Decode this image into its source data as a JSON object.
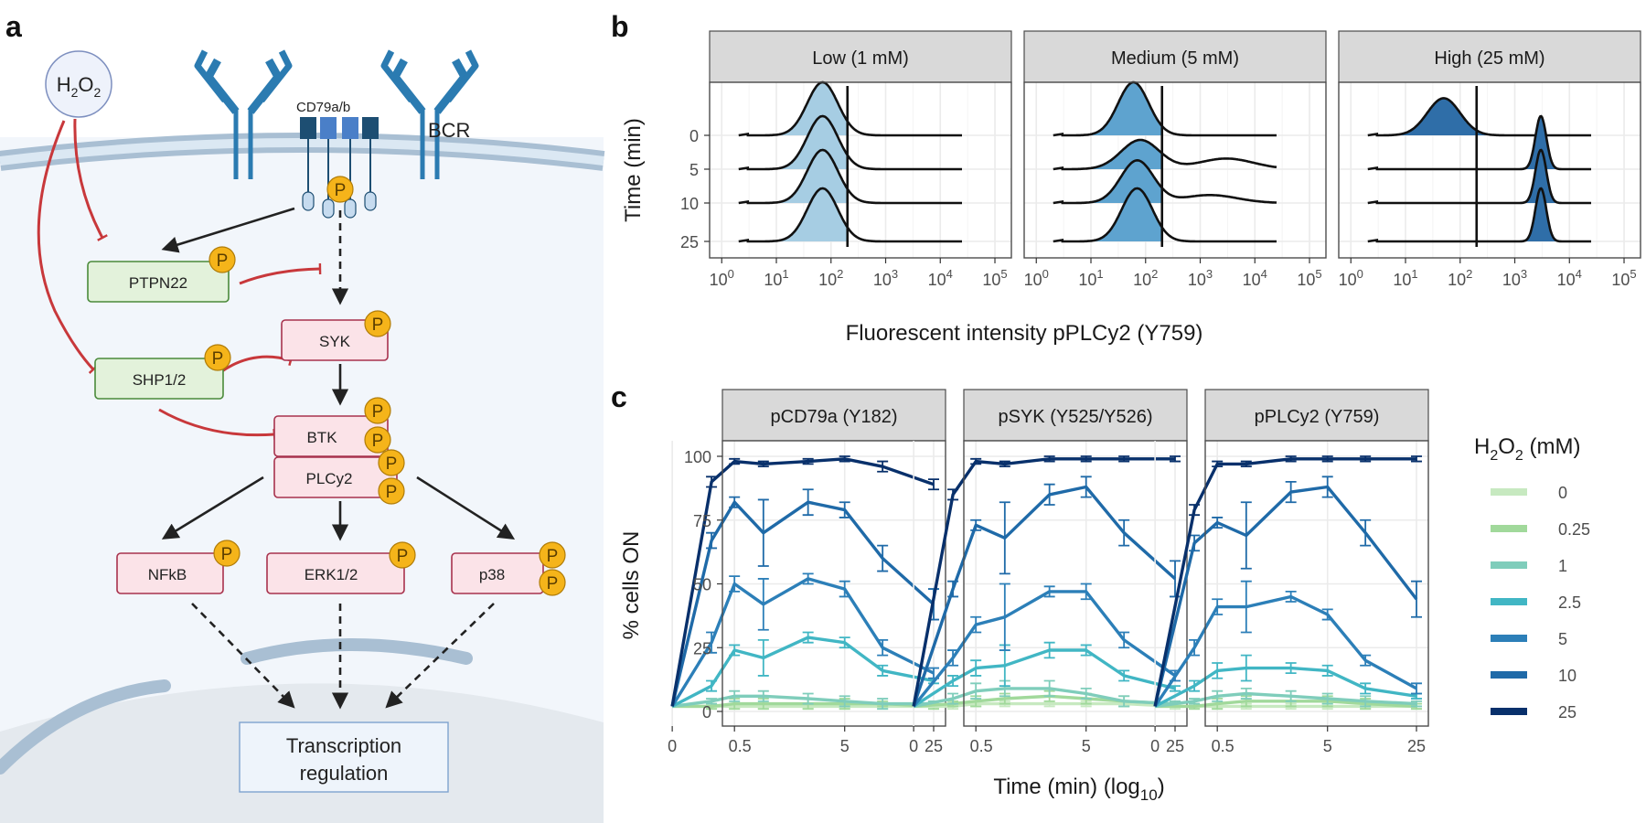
{
  "panel_labels": {
    "a": "a",
    "b": "b",
    "c": "c"
  },
  "colors": {
    "pink_fill": "#fbe3e8",
    "pink_stroke": "#a8324d",
    "green_fill": "#e3f2db",
    "green_stroke": "#4a8a3a",
    "inhibit": "#c8383b",
    "phospho": "#f5b41a",
    "strip_bg": "#d9d9d9",
    "grid": "#ebebeb",
    "receptor": "#2b7bb1",
    "receptor_dark": "#1d4e72"
  },
  "pathway": {
    "h2o2": {
      "main": "H",
      "sub1": "2",
      "mid": "O",
      "sub2": "2"
    },
    "cd79": "CD79a/b",
    "bcr": "BCR",
    "phospho_label": "P",
    "nodes": {
      "ptpn22": "PTPN22",
      "shp": "SHP1/2",
      "syk": "SYK",
      "btk": "BTK",
      "plcy2": "PLCy2",
      "nfkb": "NFkB",
      "erk": "ERK1/2",
      "p38": "p38",
      "transcription_line1": "Transcription",
      "transcription_line2": "regulation"
    }
  },
  "chart_data": [
    {
      "type": "ridgeline",
      "panels": [
        "Low (1 mM)",
        "Medium (5 mM)",
        "High (25 mM)"
      ],
      "y_categories": [
        "0",
        "5",
        "10",
        "25"
      ],
      "ylabel": "Time (min)",
      "xlabel": "Fluorescent intensity pPLCy2 (Y759)",
      "x_scale": "log10",
      "xlim": [
        0.6,
        200000
      ],
      "x_ticks": [
        {
          "base": "10",
          "exp": "0"
        },
        {
          "base": "10",
          "exp": "1"
        },
        {
          "base": "10",
          "exp": "2"
        },
        {
          "base": "10",
          "exp": "3"
        },
        {
          "base": "10",
          "exp": "4"
        },
        {
          "base": "10",
          "exp": "5"
        }
      ],
      "threshold": 200,
      "fill_colors": [
        "#a6cde3",
        "#5ea3cf",
        "#2f6ea8"
      ],
      "peaks": [
        [
          [
            {
              "center": 70,
              "sd": 0.28,
              "amp": 1
            }
          ],
          [
            {
              "center": 70,
              "sd": 0.28,
              "amp": 1
            }
          ],
          [
            {
              "center": 70,
              "sd": 0.28,
              "amp": 1
            }
          ],
          [
            {
              "center": 70,
              "sd": 0.28,
              "amp": 1
            }
          ]
        ],
        [
          [
            {
              "center": 60,
              "sd": 0.28,
              "amp": 1
            }
          ],
          [
            {
              "center": 80,
              "sd": 0.35,
              "amp": 0.55
            },
            {
              "center": 3000,
              "sd": 0.5,
              "amp": 0.2
            }
          ],
          [
            {
              "center": 70,
              "sd": 0.3,
              "amp": 0.8
            },
            {
              "center": 1500,
              "sd": 0.5,
              "amp": 0.15
            }
          ],
          [
            {
              "center": 70,
              "sd": 0.28,
              "amp": 1
            }
          ]
        ],
        [
          [
            {
              "center": 50,
              "sd": 0.3,
              "amp": 0.7
            }
          ],
          [
            {
              "center": 3000,
              "sd": 0.1,
              "amp": 1
            }
          ],
          [
            {
              "center": 3000,
              "sd": 0.1,
              "amp": 1
            }
          ],
          [
            {
              "center": 3000,
              "sd": 0.1,
              "amp": 1
            }
          ]
        ]
      ]
    },
    {
      "type": "line",
      "panels": [
        "pCD79a (Y182)",
        "pSYK (Y525/Y526)",
        "pPLCy2 (Y759)"
      ],
      "x": [
        0,
        0.25,
        0.5,
        1,
        2.5,
        5,
        10,
        25
      ],
      "x_tick_labels": [
        "0",
        "0.5",
        "5",
        "25"
      ],
      "x_tick_values": [
        0,
        0.5,
        5,
        25
      ],
      "xlabel": {
        "main": "Time (min) (log",
        "sub": "10",
        "close": ")"
      },
      "ylabel": "% cells ON",
      "ylim": [
        0,
        100
      ],
      "y_ticks": [
        0,
        25,
        50,
        75,
        100
      ],
      "legend": {
        "title_main": "H",
        "title_sub1": "2",
        "title_mid": "O",
        "title_sub2": "2",
        "title_units": " (mM)",
        "position": "right"
      },
      "series_names": [
        "0",
        "0.25",
        "1",
        "2.5",
        "5",
        "10",
        "25"
      ],
      "series_colors": [
        "#c7e9c0",
        "#a1d99b",
        "#7fcdbb",
        "#41b6c4",
        "#2c7fb8",
        "#1f6aa8",
        "#08306b"
      ],
      "series": [
        {
          "name": "0",
          "panels": [
            [
              2,
              2,
              2,
              2,
              2,
              2,
              2,
              2
            ],
            [
              2,
              2,
              3,
              3,
              3,
              3,
              3,
              2
            ],
            [
              2,
              2,
              2,
              2,
              2,
              2,
              2,
              2
            ]
          ]
        },
        {
          "name": "0.25",
          "panels": [
            [
              2,
              2,
              3,
              3,
              3,
              3,
              3,
              2
            ],
            [
              2,
              3,
              4,
              5,
              6,
              5,
              4,
              3
            ],
            [
              2,
              2,
              3,
              4,
              4,
              4,
              3,
              2
            ]
          ]
        },
        {
          "name": "1",
          "panels": [
            [
              2,
              4,
              6,
              6,
              5,
              4,
              3,
              3
            ],
            [
              2,
              5,
              8,
              9,
              9,
              7,
              4,
              3
            ],
            [
              2,
              4,
              6,
              7,
              6,
              5,
              4,
              3
            ]
          ]
        },
        {
          "name": "2.5",
          "panels": [
            [
              2,
              10,
              24,
              21,
              29,
              27,
              16,
              12
            ],
            [
              2,
              12,
              17,
              18,
              24,
              24,
              14,
              9
            ],
            [
              2,
              10,
              16,
              17,
              17,
              16,
              9,
              6
            ]
          ]
        },
        {
          "name": "5",
          "panels": [
            [
              2,
              27,
              50,
              42,
              52,
              48,
              25,
              15
            ],
            [
              2,
              21,
              34,
              37,
              47,
              47,
              28,
              14
            ],
            [
              2,
              25,
              41,
              41,
              45,
              38,
              20,
              9
            ]
          ]
        },
        {
          "name": "10",
          "panels": [
            [
              2,
              67,
              82,
              70,
              82,
              79,
              60,
              42
            ],
            [
              2,
              48,
              73,
              68,
              85,
              88,
              70,
              52
            ],
            [
              2,
              66,
              74,
              69,
              86,
              88,
              70,
              44
            ]
          ]
        },
        {
          "name": "25",
          "panels": [
            [
              2,
              90,
              98,
              97,
              98,
              99,
              96,
              89
            ],
            [
              2,
              85,
              98,
              97,
              99,
              99,
              99,
              99
            ],
            [
              2,
              79,
              97,
              97,
              99,
              99,
              99,
              99
            ]
          ]
        }
      ],
      "error": [
        [
          [
            1,
            1,
            1,
            1,
            1,
            1,
            1,
            1
          ],
          [
            1,
            1,
            2,
            2,
            2,
            2,
            1,
            1
          ],
          [
            1,
            1,
            2,
            2,
            2,
            2,
            2,
            1
          ],
          [
            1,
            2,
            2,
            7,
            2,
            2,
            2,
            1
          ],
          [
            1,
            4,
            3,
            10,
            2,
            3,
            3,
            2
          ],
          [
            1,
            3,
            2,
            13,
            5,
            3,
            5,
            6
          ],
          [
            1,
            2,
            1,
            1,
            1,
            1,
            2,
            2
          ]
        ],
        [
          [
            1,
            1,
            1,
            1,
            1,
            1,
            1,
            1
          ],
          [
            1,
            1,
            2,
            2,
            2,
            2,
            2,
            1
          ],
          [
            1,
            2,
            3,
            3,
            3,
            2,
            2,
            1
          ],
          [
            1,
            2,
            3,
            8,
            3,
            2,
            2,
            1
          ],
          [
            1,
            3,
            3,
            13,
            2,
            3,
            3,
            2
          ],
          [
            1,
            3,
            2,
            14,
            4,
            4,
            5,
            7
          ],
          [
            1,
            2,
            1,
            1,
            1,
            1,
            1,
            1
          ]
        ],
        [
          [
            1,
            1,
            1,
            1,
            1,
            1,
            1,
            1
          ],
          [
            1,
            1,
            2,
            2,
            2,
            2,
            2,
            1
          ],
          [
            1,
            1,
            2,
            2,
            2,
            2,
            2,
            1
          ],
          [
            1,
            2,
            3,
            5,
            2,
            2,
            2,
            1
          ],
          [
            1,
            3,
            3,
            10,
            2,
            2,
            2,
            2
          ],
          [
            1,
            3,
            2,
            13,
            4,
            4,
            5,
            7
          ],
          [
            1,
            2,
            1,
            1,
            1,
            1,
            1,
            1
          ]
        ]
      ]
    }
  ]
}
